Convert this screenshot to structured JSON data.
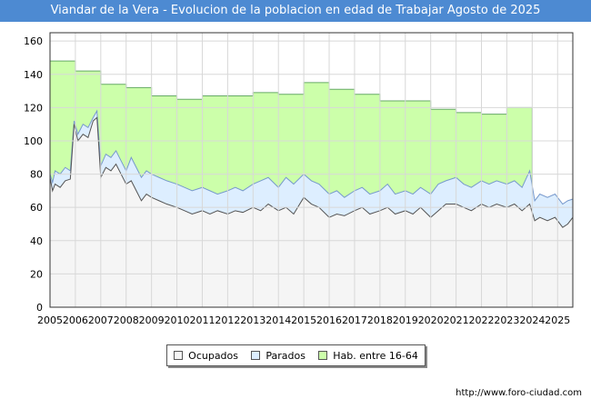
{
  "chart_data": {
    "type": "area",
    "title": "Viandar de la Vera - Evolucion de la poblacion en edad de Trabajar Agosto de 2025",
    "xlabel": "",
    "ylabel": "",
    "xlim": [
      2005,
      2025.6
    ],
    "ylim": [
      0,
      165
    ],
    "yticks": [
      0,
      20,
      40,
      60,
      80,
      100,
      120,
      140,
      160
    ],
    "xticks": [
      "2005",
      "2006",
      "2007",
      "2008",
      "2009",
      "2010",
      "2011",
      "2012",
      "2013",
      "2014",
      "2015",
      "2016",
      "2017",
      "2018",
      "2019",
      "2020",
      "2021",
      "2022",
      "2023",
      "2024",
      "2025"
    ],
    "grid": true,
    "legend_position": "bottom",
    "series": [
      {
        "name": "Hab. entre 16-64",
        "color": "#ccffaa",
        "line_color": "#66aa66",
        "step": true,
        "x": [
          2005,
          2006,
          2007,
          2008,
          2009,
          2010,
          2011,
          2012,
          2013,
          2014,
          2015,
          2016,
          2017,
          2018,
          2019,
          2020,
          2021,
          2022,
          2023
        ],
        "values": [
          148,
          142,
          134,
          132,
          127,
          125,
          127,
          127,
          129,
          128,
          135,
          131,
          128,
          124,
          124,
          119,
          117,
          116,
          120
        ],
        "end_x": 2024
      },
      {
        "name": "Parados",
        "color": "#ddeeff",
        "line_color": "#7799cc",
        "points": [
          [
            2005,
            80
          ],
          [
            2005.1,
            75
          ],
          [
            2005.2,
            82
          ],
          [
            2005.4,
            80
          ],
          [
            2005.6,
            84
          ],
          [
            2005.8,
            82
          ],
          [
            2005.95,
            112
          ],
          [
            2006.1,
            104
          ],
          [
            2006.3,
            110
          ],
          [
            2006.5,
            108
          ],
          [
            2006.7,
            114
          ],
          [
            2006.85,
            118
          ],
          [
            2007.0,
            85
          ],
          [
            2007.2,
            92
          ],
          [
            2007.4,
            90
          ],
          [
            2007.6,
            94
          ],
          [
            2007.8,
            88
          ],
          [
            2008.0,
            82
          ],
          [
            2008.2,
            90
          ],
          [
            2008.4,
            84
          ],
          [
            2008.6,
            78
          ],
          [
            2008.8,
            82
          ],
          [
            2009.0,
            80
          ],
          [
            2009.3,
            78
          ],
          [
            2009.6,
            76
          ],
          [
            2010.0,
            74
          ],
          [
            2010.3,
            72
          ],
          [
            2010.6,
            70
          ],
          [
            2011.0,
            72
          ],
          [
            2011.3,
            70
          ],
          [
            2011.6,
            68
          ],
          [
            2012.0,
            70
          ],
          [
            2012.3,
            72
          ],
          [
            2012.6,
            70
          ],
          [
            2013.0,
            74
          ],
          [
            2013.3,
            76
          ],
          [
            2013.6,
            78
          ],
          [
            2014.0,
            72
          ],
          [
            2014.3,
            78
          ],
          [
            2014.6,
            74
          ],
          [
            2015.0,
            80
          ],
          [
            2015.3,
            76
          ],
          [
            2015.6,
            74
          ],
          [
            2016.0,
            68
          ],
          [
            2016.3,
            70
          ],
          [
            2016.6,
            66
          ],
          [
            2017.0,
            70
          ],
          [
            2017.3,
            72
          ],
          [
            2017.6,
            68
          ],
          [
            2018.0,
            70
          ],
          [
            2018.3,
            74
          ],
          [
            2018.6,
            68
          ],
          [
            2019.0,
            70
          ],
          [
            2019.3,
            68
          ],
          [
            2019.6,
            72
          ],
          [
            2020.0,
            68
          ],
          [
            2020.3,
            74
          ],
          [
            2020.6,
            76
          ],
          [
            2021.0,
            78
          ],
          [
            2021.3,
            74
          ],
          [
            2021.6,
            72
          ],
          [
            2022.0,
            76
          ],
          [
            2022.3,
            74
          ],
          [
            2022.6,
            76
          ],
          [
            2023.0,
            74
          ],
          [
            2023.3,
            76
          ],
          [
            2023.6,
            72
          ],
          [
            2023.9,
            82
          ],
          [
            2024.1,
            64
          ],
          [
            2024.3,
            68
          ],
          [
            2024.6,
            66
          ],
          [
            2024.9,
            68
          ],
          [
            2025.2,
            62
          ],
          [
            2025.4,
            64
          ],
          [
            2025.6,
            65
          ]
        ]
      },
      {
        "name": "Ocupados",
        "color": "#f5f5f5",
        "line_color": "#555555",
        "points": [
          [
            2005,
            78
          ],
          [
            2005.1,
            70
          ],
          [
            2005.2,
            74
          ],
          [
            2005.4,
            72
          ],
          [
            2005.6,
            76
          ],
          [
            2005.8,
            77
          ],
          [
            2005.95,
            110
          ],
          [
            2006.1,
            100
          ],
          [
            2006.3,
            104
          ],
          [
            2006.5,
            102
          ],
          [
            2006.7,
            112
          ],
          [
            2006.85,
            114
          ],
          [
            2007.0,
            78
          ],
          [
            2007.2,
            84
          ],
          [
            2007.4,
            82
          ],
          [
            2007.6,
            86
          ],
          [
            2007.8,
            80
          ],
          [
            2008.0,
            74
          ],
          [
            2008.2,
            76
          ],
          [
            2008.4,
            70
          ],
          [
            2008.6,
            64
          ],
          [
            2008.8,
            68
          ],
          [
            2009.0,
            66
          ],
          [
            2009.3,
            64
          ],
          [
            2009.6,
            62
          ],
          [
            2010.0,
            60
          ],
          [
            2010.3,
            58
          ],
          [
            2010.6,
            56
          ],
          [
            2011.0,
            58
          ],
          [
            2011.3,
            56
          ],
          [
            2011.6,
            58
          ],
          [
            2012.0,
            56
          ],
          [
            2012.3,
            58
          ],
          [
            2012.6,
            57
          ],
          [
            2013.0,
            60
          ],
          [
            2013.3,
            58
          ],
          [
            2013.6,
            62
          ],
          [
            2014.0,
            58
          ],
          [
            2014.3,
            60
          ],
          [
            2014.6,
            56
          ],
          [
            2015.0,
            66
          ],
          [
            2015.3,
            62
          ],
          [
            2015.6,
            60
          ],
          [
            2016.0,
            54
          ],
          [
            2016.3,
            56
          ],
          [
            2016.6,
            55
          ],
          [
            2017.0,
            58
          ],
          [
            2017.3,
            60
          ],
          [
            2017.6,
            56
          ],
          [
            2018.0,
            58
          ],
          [
            2018.3,
            60
          ],
          [
            2018.6,
            56
          ],
          [
            2019.0,
            58
          ],
          [
            2019.3,
            56
          ],
          [
            2019.6,
            60
          ],
          [
            2020.0,
            54
          ],
          [
            2020.3,
            58
          ],
          [
            2020.6,
            62
          ],
          [
            2021.0,
            62
          ],
          [
            2021.3,
            60
          ],
          [
            2021.6,
            58
          ],
          [
            2022.0,
            62
          ],
          [
            2022.3,
            60
          ],
          [
            2022.6,
            62
          ],
          [
            2023.0,
            60
          ],
          [
            2023.3,
            62
          ],
          [
            2023.6,
            58
          ],
          [
            2023.9,
            62
          ],
          [
            2024.1,
            52
          ],
          [
            2024.3,
            54
          ],
          [
            2024.6,
            52
          ],
          [
            2024.9,
            54
          ],
          [
            2025.2,
            48
          ],
          [
            2025.4,
            50
          ],
          [
            2025.6,
            54
          ]
        ]
      }
    ]
  },
  "source_url": "http://www.foro-ciudad.com",
  "legend": {
    "items": [
      "Ocupados",
      "Parados",
      "Hab. entre 16-64"
    ]
  }
}
